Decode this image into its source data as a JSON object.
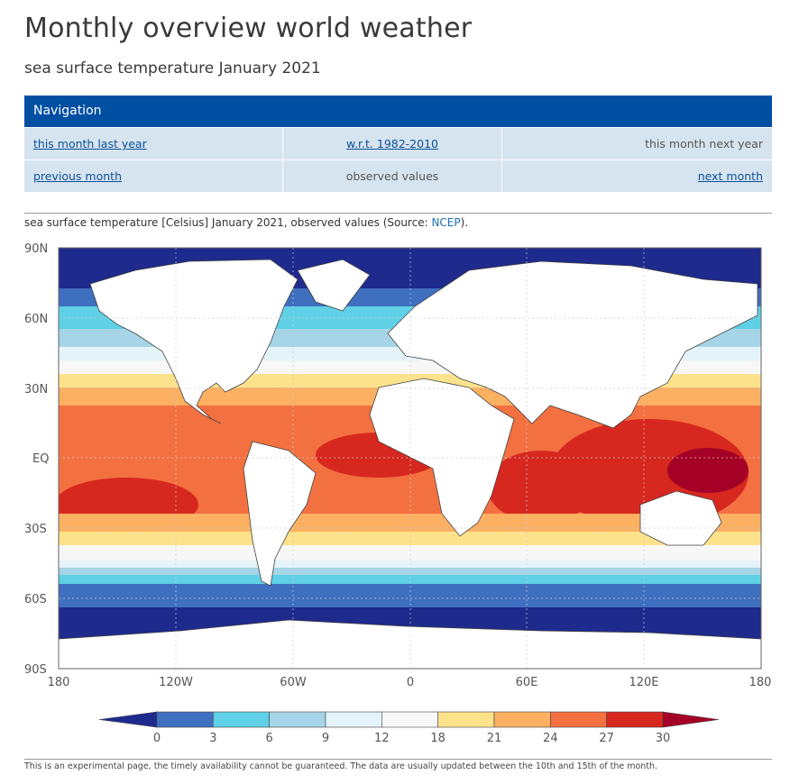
{
  "page": {
    "title": "Monthly overview world weather",
    "subtitle": "sea surface temperature January 2021"
  },
  "navigation": {
    "header": "Navigation",
    "rows": [
      [
        {
          "label": "this month last year",
          "link": true
        },
        {
          "label": "w.r.t. 1982-2010",
          "link": true
        },
        {
          "label": "this month next year",
          "link": false
        }
      ],
      [
        {
          "label": "previous month",
          "link": true
        },
        {
          "label": "observed values",
          "link": false
        },
        {
          "label": "next month",
          "link": true
        }
      ]
    ]
  },
  "caption": {
    "text_before": "sea surface temperature [Celsius] January 2021, observed values (Source: ",
    "source_link": "NCEP",
    "text_after": ")."
  },
  "map": {
    "y_labels": [
      "90N",
      "60N",
      "30N",
      "EQ",
      "30S",
      "60S",
      "90S"
    ],
    "x_labels": [
      "180",
      "120W",
      "60W",
      "0",
      "60E",
      "120E",
      "180"
    ]
  },
  "colorbar": {
    "ticks": [
      "0",
      "3",
      "6",
      "9",
      "12",
      "18",
      "21",
      "24",
      "27",
      "30"
    ],
    "colors": [
      "#1e2a8c",
      "#3f6fbf",
      "#5fd0e6",
      "#a5d5e6",
      "#e4f3f8",
      "#f7f7f7",
      "#fde28c",
      "#fbb062",
      "#f37040",
      "#d7281f",
      "#a50026"
    ],
    "land_color": "#ffffff"
  },
  "footer": {
    "text": "This is an experimental page, the timely availability cannot be guaranteed. The data are usually updated between the 10th and 15th of the month."
  }
}
